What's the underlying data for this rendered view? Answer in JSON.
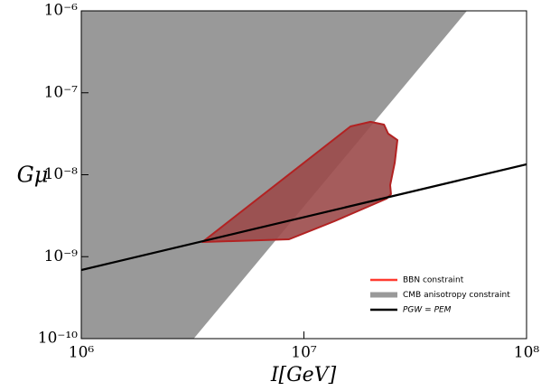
{
  "chart_data": {
    "type": "line",
    "xlabel": "I[GeV]",
    "ylabel": "Gμ",
    "xscale": "log",
    "yscale": "log",
    "xlim": [
      1000000,
      100000000
    ],
    "ylim": [
      1e-10,
      1e-06
    ],
    "xticks": [
      {
        "value": 1000000,
        "label": "10⁶"
      },
      {
        "value": 10000000,
        "label": "10⁷"
      },
      {
        "value": 100000000,
        "label": "10⁸"
      }
    ],
    "yticks": [
      {
        "value": 1e-10,
        "label": "10⁻¹⁰"
      },
      {
        "value": 1e-09,
        "label": "10⁻⁹"
      },
      {
        "value": 1e-08,
        "label": "10⁻⁸"
      },
      {
        "value": 1e-07,
        "label": "10⁻⁷"
      },
      {
        "value": 1e-06,
        "label": "10⁻⁶"
      }
    ],
    "legend": "lower right",
    "series": [
      {
        "name": "CMB anisotropy constraint",
        "color": "#999999",
        "fill": true,
        "x": [
          1000000,
          3200000,
          54000000,
          1000000
        ],
        "values": [
          1e-10,
          1e-10,
          1e-06,
          1e-06
        ]
      },
      {
        "name": "BBN constraint",
        "color": "#ff3b30",
        "fill": true,
        "x": [
          3500000,
          16200000,
          19900000,
          22900000,
          23900000,
          26300000,
          25600000,
          24400000,
          24600000,
          23500000,
          13700000,
          8570000
        ],
        "values": [
          1.51e-09,
          3.89e-08,
          4.42e-08,
          4.09e-08,
          3.17e-08,
          2.65e-08,
          1.41e-08,
          7.47e-09,
          5.79e-09,
          5.1e-09,
          2.71e-09,
          1.63e-09
        ]
      },
      {
        "name": "PGW = PEM",
        "color": "#000000",
        "fill": false,
        "x": [
          1000000,
          100000000
        ],
        "values": [
          6.87e-10,
          1.34e-08
        ]
      }
    ]
  }
}
